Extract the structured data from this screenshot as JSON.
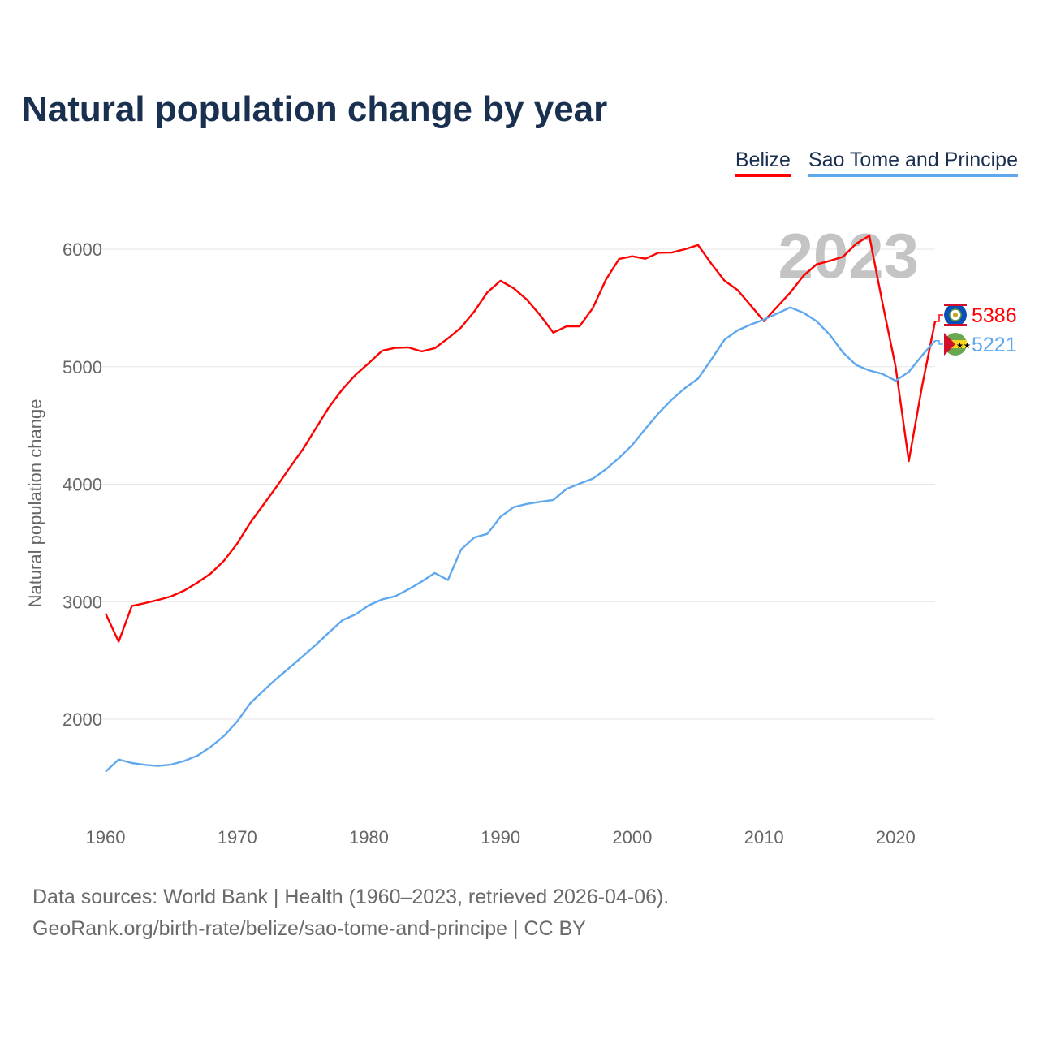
{
  "chart_data": {
    "type": "line",
    "title": "Natural population change by year",
    "xlabel": "",
    "ylabel": "Natural population change",
    "xlim": [
      1960,
      2023
    ],
    "ylim": [
      1400,
      6300
    ],
    "x_ticks": [
      1960,
      1970,
      1980,
      1990,
      2000,
      2010,
      2020
    ],
    "y_ticks": [
      2000,
      3000,
      4000,
      5000,
      6000
    ],
    "grid": true,
    "legend_position": "top-right",
    "current_year_label": "2023",
    "x": [
      1960,
      1961,
      1962,
      1963,
      1964,
      1965,
      1966,
      1967,
      1968,
      1969,
      1970,
      1971,
      1972,
      1973,
      1974,
      1975,
      1976,
      1977,
      1978,
      1979,
      1980,
      1981,
      1982,
      1983,
      1984,
      1985,
      1986,
      1987,
      1988,
      1989,
      1990,
      1991,
      1992,
      1993,
      1994,
      1995,
      1996,
      1997,
      1998,
      1999,
      2000,
      2001,
      2002,
      2003,
      2004,
      2005,
      2006,
      2007,
      2008,
      2009,
      2010,
      2011,
      2012,
      2013,
      2014,
      2015,
      2016,
      2017,
      2018,
      2019,
      2020,
      2021,
      2022,
      2023
    ],
    "series": [
      {
        "name": "Belize",
        "color": "#ff0000",
        "end_label": "5386",
        "values": [
          2901,
          2660,
          2963,
          2988,
          3015,
          3046,
          3096,
          3164,
          3241,
          3349,
          3494,
          3673,
          3827,
          3981,
          4142,
          4299,
          4481,
          4660,
          4809,
          4932,
          5031,
          5136,
          5160,
          5164,
          5130,
          5157,
          5241,
          5333,
          5469,
          5633,
          5731,
          5667,
          5571,
          5440,
          5290,
          5343,
          5343,
          5498,
          5740,
          5917,
          5940,
          5919,
          5970,
          5972,
          6000,
          6035,
          5878,
          5733,
          5652,
          5521,
          5387,
          5509,
          5631,
          5774,
          5871,
          5901,
          5935,
          6046,
          6115,
          5544,
          5002,
          4196,
          4829,
          5386
        ]
      },
      {
        "name": "Sao Tome and Principe",
        "color": "#5fa8ee",
        "end_label": "5221",
        "values": [
          1552,
          1657,
          1627,
          1611,
          1602,
          1614,
          1645,
          1691,
          1765,
          1858,
          1981,
          2136,
          2244,
          2346,
          2441,
          2537,
          2636,
          2741,
          2843,
          2892,
          2970,
          3019,
          3046,
          3105,
          3170,
          3244,
          3185,
          3444,
          3546,
          3577,
          3722,
          3805,
          3832,
          3850,
          3866,
          3959,
          4005,
          4046,
          4127,
          4224,
          4334,
          4472,
          4604,
          4719,
          4818,
          4899,
          5060,
          5228,
          5309,
          5359,
          5401,
          5452,
          5505,
          5459,
          5387,
          5272,
          5122,
          5014,
          4968,
          4938,
          4880,
          4956,
          5094,
          5221
        ]
      }
    ]
  },
  "footer": {
    "line1": "Data sources: World Bank | Health (1960–2023, retrieved 2026-04-06).",
    "line2": "GeoRank.org/birth-rate/belize/sao-tome-and-principe | CC BY"
  }
}
